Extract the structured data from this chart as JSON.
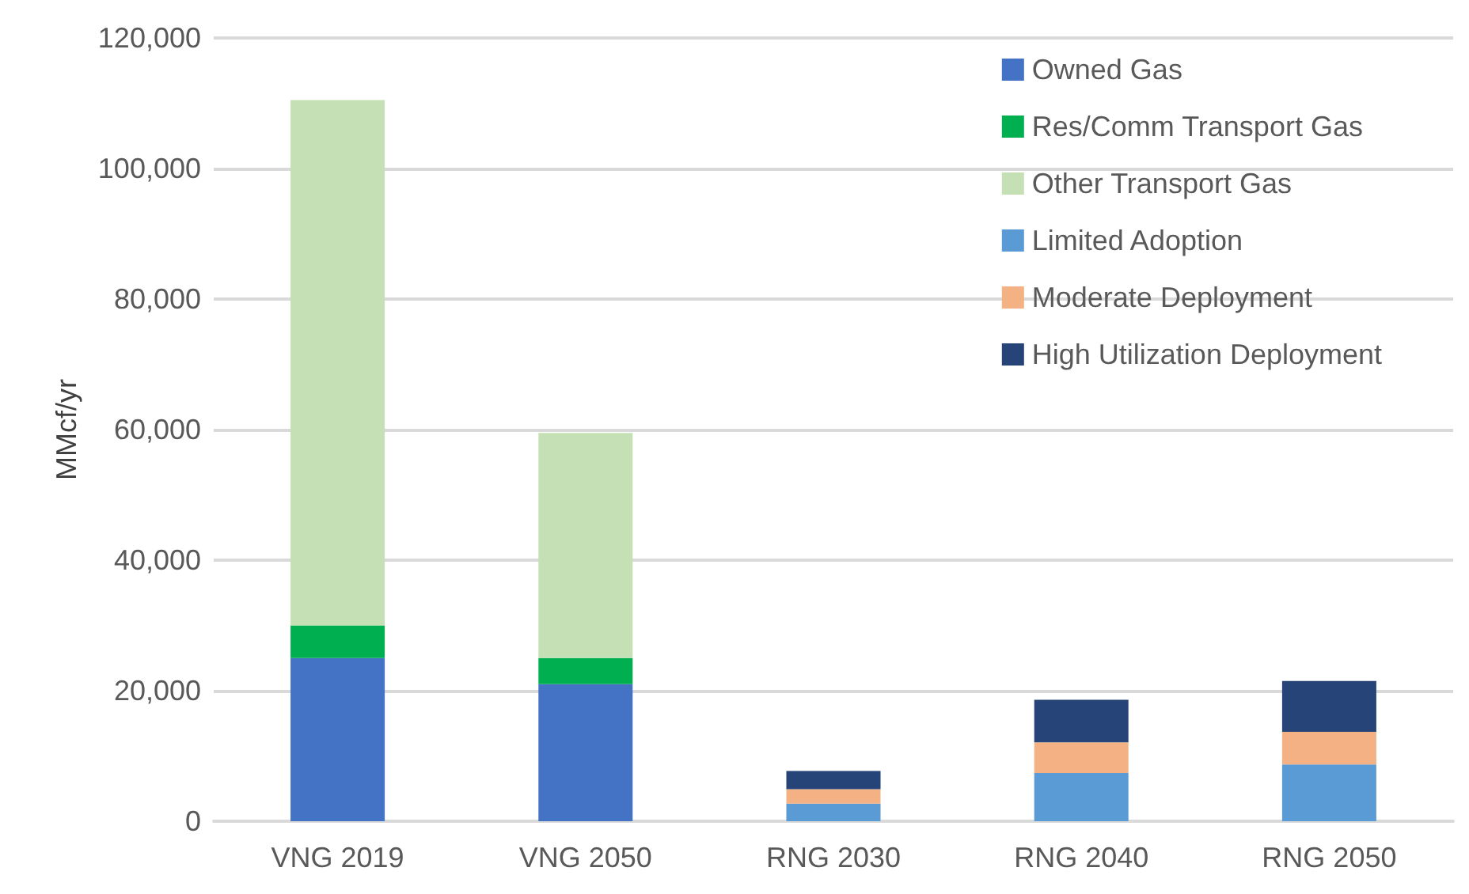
{
  "chart_data": {
    "type": "bar",
    "stacked": true,
    "ylabel": "MMcf/yr",
    "categories": [
      "VNG 2019",
      "VNG 2050",
      "RNG 2030",
      "RNG 2040",
      "RNG 2050"
    ],
    "series": [
      {
        "name": "Owned Gas",
        "color": "#4472c4",
        "values": [
          25000,
          21000,
          null,
          null,
          null
        ]
      },
      {
        "name": "Res/Comm Transport Gas",
        "color": "#00b050",
        "values": [
          5000,
          4000,
          null,
          null,
          null
        ]
      },
      {
        "name": "Other Transport Gas",
        "color": "#c5e0b4",
        "values": [
          80500,
          34500,
          null,
          null,
          null
        ]
      },
      {
        "name": "Limited Adoption",
        "color": "#5b9bd5",
        "values": [
          null,
          null,
          2700,
          7400,
          8700
        ]
      },
      {
        "name": "Moderate Deployment",
        "color": "#f4b183",
        "values": [
          null,
          null,
          2200,
          4700,
          5000
        ]
      },
      {
        "name": "High Utilization Deployment",
        "color": "#264478",
        "values": [
          null,
          null,
          2800,
          6500,
          7800
        ]
      }
    ],
    "ylim": [
      0,
      120000
    ],
    "yticks": [
      0,
      {
        "value": 20000,
        "label": "20,000"
      },
      {
        "value": 40000,
        "label": "40,000"
      },
      {
        "value": 60000,
        "label": "60,000"
      },
      {
        "value": 80000,
        "label": "80,000"
      },
      {
        "value": 100000,
        "label": "100,000"
      },
      {
        "value": 120000,
        "label": "120,000"
      }
    ],
    "grid": "y",
    "legend": "top right"
  }
}
